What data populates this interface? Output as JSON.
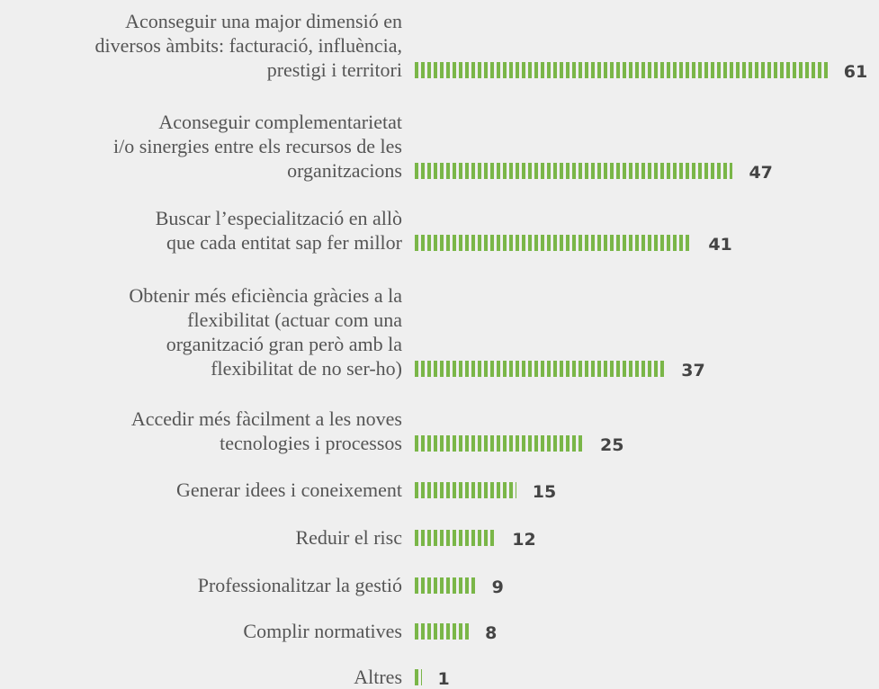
{
  "chart_data": {
    "type": "bar",
    "orientation": "horizontal",
    "color": "#7ab648",
    "categories": [
      "Aconseguir una major dimensió en\ndiversos àmbits: facturació, influència,\nprestigi i territori",
      "Aconseguir complementarietat\ni/o sinergies entre els recursos de les\norganitzacions",
      "Buscar l’especialització en allò\nque cada entitat sap fer millor",
      "Obtenir més eficiència gràcies a la\nflexibilitat (actuar com una\norganització gran però amb la\nflexibilitat de no ser-ho)",
      "Accedir més fàcilment a les noves\ntecnologies i processos",
      "Generar idees i coneixement",
      "Reduir el risc",
      "Professionalitzar la gestió",
      "Complir normatives",
      "Altres"
    ],
    "values": [
      61,
      47,
      41,
      37,
      25,
      15,
      12,
      9,
      8,
      1
    ]
  }
}
